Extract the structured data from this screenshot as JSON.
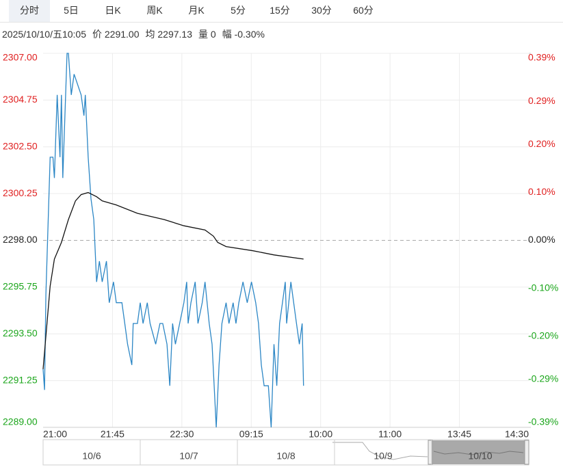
{
  "tabs": [
    "分时",
    "5日",
    "日K",
    "周K",
    "月K",
    "5分",
    "15分",
    "30分",
    "60分"
  ],
  "info": [
    "2025/10/10/五10:05",
    "价 2291.00",
    "均 2297.13",
    "量 0",
    "幅 -0.30%"
  ],
  "chart_data": {
    "type": "line",
    "x_labels": [
      "21:00",
      "21:45",
      "22:30",
      "09:15",
      "10:00",
      "11:00",
      "13:45",
      "14:30"
    ],
    "xlim": [
      0,
      345
    ],
    "ylim": [
      2289,
      2307
    ],
    "yticks": [
      {
        "value": 2307,
        "label": "2307.00"
      },
      {
        "value": 2304.75,
        "label": "2304.75"
      },
      {
        "value": 2302.5,
        "label": "2302.50"
      },
      {
        "value": 2300.25,
        "label": "2300.25"
      },
      {
        "value": 2298,
        "label": "2298.00"
      },
      {
        "value": 2295.75,
        "label": "2295.75"
      },
      {
        "value": 2293.5,
        "label": "2293.50"
      },
      {
        "value": 2291.25,
        "label": "2291.25"
      },
      {
        "value": 2289,
        "label": "2289.00"
      }
    ],
    "y2lim": [
      -0.39,
      0.39
    ],
    "y2ticks": [
      {
        "value": 0.39,
        "label": "0.39%"
      },
      {
        "value": 0.29,
        "label": "0.29%"
      },
      {
        "value": 0.2,
        "label": "0.20%"
      },
      {
        "value": 0.1,
        "label": "0.10%"
      },
      {
        "value": 0,
        "label": "0.00%"
      },
      {
        "value": -0.1,
        "label": "-0.10%"
      },
      {
        "value": -0.2,
        "label": "-0.20%"
      },
      {
        "value": -0.29,
        "label": "-0.29%"
      },
      {
        "value": -0.39,
        "label": "-0.39%"
      }
    ],
    "ref_value": 2298,
    "up_color": "#e02020",
    "down_color": "#1aa51a",
    "flat_color": "#222222",
    "grid": true,
    "series": [
      {
        "color": "#2b86c5",
        "x": [
          0,
          1,
          2,
          5,
          7,
          8,
          10,
          12,
          13,
          14,
          17,
          18,
          20,
          22,
          27,
          29,
          30,
          32,
          34,
          36,
          38,
          40,
          42,
          45,
          47,
          50,
          52,
          56,
          58,
          60,
          63,
          64,
          67,
          69,
          71,
          74,
          76,
          80,
          83,
          85,
          88,
          90,
          92,
          94,
          97,
          100,
          102,
          103,
          105,
          108,
          110,
          113,
          115,
          118,
          120,
          123,
          125,
          127,
          130,
          132,
          135,
          137,
          139,
          142,
          145,
          148,
          151,
          153,
          155,
          157,
          160,
          162,
          164,
          166,
          168,
          170,
          172,
          173,
          176,
          178,
          180,
          182,
          184,
          185
        ],
        "values": [
          2291.8,
          2290.8,
          2295.4,
          2302,
          2302,
          2301,
          2305,
          2302,
          2305,
          2301,
          2307,
          2307,
          2305,
          2306,
          2305,
          2304,
          2305,
          2302,
          2300,
          2299,
          2296,
          2297,
          2296,
          2297,
          2295,
          2296,
          2295,
          2295,
          2294,
          2293,
          2292,
          2294,
          2294,
          2295,
          2294,
          2295,
          2294,
          2293,
          2294,
          2294,
          2293,
          2291,
          2294,
          2293,
          2294,
          2295,
          2296,
          2294,
          2295,
          2296,
          2294,
          2295,
          2296,
          2294,
          2293,
          2289,
          2292,
          2294,
          2295,
          2294,
          2295,
          2294,
          2295,
          2296,
          2295,
          2296,
          2295,
          2294,
          2292,
          2291,
          2291,
          2289,
          2293,
          2291,
          2294,
          2295,
          2296,
          2294,
          2296,
          2295,
          2294,
          2293,
          2294,
          2291
        ]
      },
      {
        "color": "#111111",
        "x": [
          0,
          5,
          8,
          13,
          18,
          23,
          27,
          32,
          38,
          42,
          52,
          67,
          86,
          100,
          115,
          121,
          124,
          130,
          149,
          164,
          185
        ],
        "values": [
          2291.8,
          2295.8,
          2297.1,
          2297.9,
          2299,
          2299.9,
          2300.2,
          2300.3,
          2300.1,
          2299.9,
          2299.7,
          2299.3,
          2299,
          2298.7,
          2298.5,
          2298.2,
          2297.9,
          2297.7,
          2297.5,
          2297.3,
          2297.1
        ]
      }
    ]
  },
  "navigator_dates": [
    "10/6",
    "10/7",
    "10/8",
    "10/9",
    "10/10"
  ]
}
